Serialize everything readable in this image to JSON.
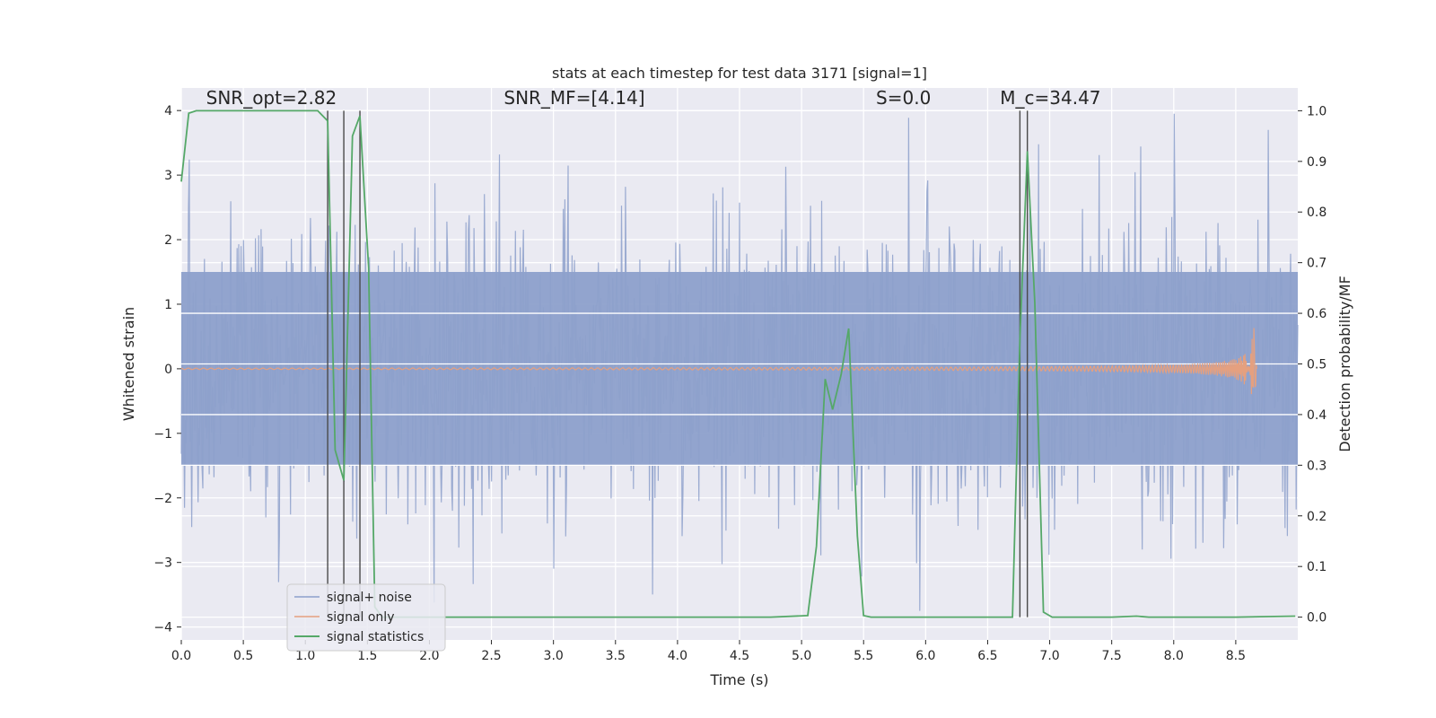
{
  "chart_data": {
    "type": "line",
    "title": "stats at each timestep for test data 3171 [signal=1]",
    "xlabel": "Time (s)",
    "ylabel_left": "Whitened strain",
    "ylabel_right": "Detection probability/MF",
    "xlim": [
      0.0,
      9.0
    ],
    "ylim_left": [
      -4.2,
      4.35
    ],
    "ylim_right": [
      -0.045,
      1.045
    ],
    "x_ticks": [
      0.0,
      0.5,
      1.0,
      1.5,
      2.0,
      2.5,
      3.0,
      3.5,
      4.0,
      4.5,
      5.0,
      5.5,
      6.0,
      6.5,
      7.0,
      7.5,
      8.0,
      8.5
    ],
    "x_tick_labels": [
      "0.0",
      "0.5",
      "1.0",
      "1.5",
      "2.0",
      "2.5",
      "3.0",
      "3.5",
      "4.0",
      "4.5",
      "5.0",
      "5.5",
      "6.0",
      "6.5",
      "7.0",
      "7.5",
      "8.0",
      "8.5"
    ],
    "y_left_ticks": [
      -4,
      -3,
      -2,
      -1,
      0,
      1,
      2,
      3,
      4
    ],
    "y_left_tick_labels": [
      "−4",
      "−3",
      "−2",
      "−1",
      "0",
      "1",
      "2",
      "3",
      "4"
    ],
    "y_right_ticks": [
      0.0,
      0.1,
      0.2,
      0.3,
      0.4,
      0.5,
      0.6,
      0.7,
      0.8,
      0.9,
      1.0
    ],
    "y_right_tick_labels": [
      "0.0",
      "0.1",
      "0.2",
      "0.3",
      "0.4",
      "0.5",
      "0.6",
      "0.7",
      "0.8",
      "0.9",
      "1.0"
    ],
    "grid": true,
    "background": "#eaeaf2",
    "annotations": [
      {
        "name": "snr-opt",
        "text": "SNR_opt=2.82",
        "x": 0.2,
        "y": 4.1
      },
      {
        "name": "snr-mf",
        "text": "SNR_MF=[4.14]",
        "x": 2.6,
        "y": 4.1
      },
      {
        "name": "s-value",
        "text": "S=0.0",
        "x": 5.6,
        "y": 4.1
      },
      {
        "name": "chirp-mass",
        "text": "M_c=34.47",
        "x": 6.6,
        "y": 4.1
      }
    ],
    "vlines": [
      1.18,
      1.31,
      1.44,
      6.76,
      6.82
    ],
    "legend": {
      "placement": "lower-left",
      "entries": [
        {
          "name": "signal+ noise",
          "color": "#8da0cb"
        },
        {
          "name": "signal only",
          "color": "#e5a07f"
        },
        {
          "name": "signal statistics",
          "color": "#55a868"
        }
      ]
    },
    "series": [
      {
        "name": "signal+ noise",
        "axis": "left",
        "color": "#8da0cb",
        "kind": "noise",
        "x_start": 0.0,
        "x_end": 9.0,
        "envelope_min": -3.8,
        "envelope_max": 3.95,
        "band": [
          -1.5,
          1.5
        ]
      },
      {
        "name": "signal only",
        "axis": "left",
        "color": "#e5a07f",
        "kind": "chirp",
        "x_start": 0.0,
        "x_end": 8.67,
        "peak_x": 8.65,
        "peak_amplitude": 0.75
      },
      {
        "name": "signal statistics",
        "axis": "right",
        "color": "#55a868",
        "kind": "line",
        "x": [
          0.0,
          0.06,
          0.12,
          0.5,
          0.9,
          1.1,
          1.18,
          1.24,
          1.31,
          1.38,
          1.44,
          1.51,
          1.56,
          1.62,
          2.0,
          3.0,
          4.0,
          4.75,
          5.05,
          5.12,
          5.19,
          5.25,
          5.32,
          5.38,
          5.45,
          5.5,
          5.56,
          5.65,
          6.0,
          6.6,
          6.7,
          6.76,
          6.82,
          6.88,
          6.95,
          7.02,
          7.5,
          7.7,
          7.8,
          8.0,
          8.5,
          8.98
        ],
        "y": [
          0.86,
          0.995,
          1.0,
          1.0,
          1.0,
          1.0,
          0.98,
          0.33,
          0.27,
          0.95,
          0.99,
          0.69,
          0.02,
          0.0,
          0.0,
          0.0,
          0.0,
          0.0,
          0.003,
          0.14,
          0.47,
          0.41,
          0.48,
          0.57,
          0.16,
          0.003,
          0.0,
          0.0,
          0.0,
          0.0,
          0.0,
          0.55,
          0.92,
          0.62,
          0.01,
          0.0,
          0.0,
          0.002,
          0.0,
          0.0,
          0.0,
          0.002
        ]
      }
    ]
  }
}
